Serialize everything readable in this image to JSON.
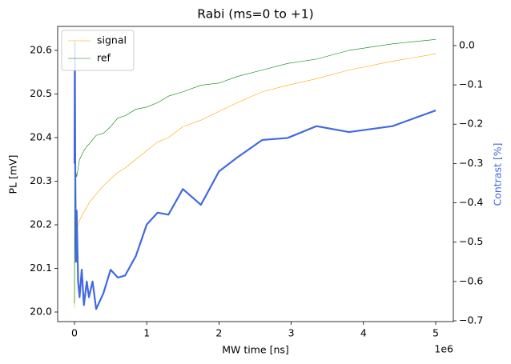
{
  "chart_data": {
    "type": "line",
    "title": "Rabi (ms=0 to +1)",
    "xlabel": "MW time [ns]",
    "x_offset_label": "1e6",
    "ylabel": "PL [mV]",
    "y2label": "Contrast [%]",
    "y2label_color": "#4169e1",
    "x": [
      0,
      5000,
      10000,
      20000,
      30000,
      50000,
      70000,
      100000,
      130000,
      170000,
      200000,
      250000,
      300000,
      400000,
      500000,
      600000,
      700000,
      850000,
      1000000,
      1150000,
      1300000,
      1500000,
      1750000,
      2000000,
      2250000,
      2600000,
      2950000,
      3350000,
      3800000,
      4400000,
      5000000
    ],
    "series": [
      {
        "name": "signal",
        "color": "#ffa500",
        "line_width": 0.6,
        "values": [
          20.01,
          20.3,
          20.15,
          20.2,
          20.19,
          20.2,
          20.21,
          20.22,
          20.23,
          20.24,
          20.25,
          20.26,
          20.27,
          20.29,
          20.305,
          20.32,
          20.33,
          20.35,
          20.37,
          20.39,
          20.4,
          20.425,
          20.44,
          20.46,
          20.48,
          20.505,
          20.52,
          20.535,
          20.555,
          20.575,
          20.592
        ]
      },
      {
        "name": "ref",
        "color": "#008000",
        "line_width": 0.6,
        "values": [
          20.02,
          20.55,
          20.3,
          20.32,
          20.31,
          20.33,
          20.35,
          20.36,
          20.37,
          20.38,
          20.385,
          20.395,
          20.405,
          20.41,
          20.425,
          20.445,
          20.45,
          20.465,
          20.47,
          20.48,
          20.495,
          20.505,
          20.52,
          20.525,
          20.54,
          20.555,
          20.57,
          20.58,
          20.6,
          20.615,
          20.625
        ]
      },
      {
        "axis": "y2",
        "color": "#4169e1",
        "line_width": 2.2,
        "values": [
          -0.3,
          0.01,
          -0.3,
          -0.55,
          -0.42,
          -0.6,
          -0.64,
          -0.57,
          -0.66,
          -0.6,
          -0.64,
          -0.6,
          -0.67,
          -0.63,
          -0.57,
          -0.59,
          -0.585,
          -0.535,
          -0.455,
          -0.425,
          -0.43,
          -0.365,
          -0.405,
          -0.32,
          -0.285,
          -0.24,
          -0.235,
          -0.205,
          -0.22,
          -0.205,
          -0.165
        ]
      }
    ],
    "xlim": [
      -233000,
      5244000
    ],
    "xticks": [
      {
        "value": 0,
        "label": "0"
      },
      {
        "value": 1000000,
        "label": "1"
      },
      {
        "value": 2000000,
        "label": "2"
      },
      {
        "value": 3000000,
        "label": "3"
      },
      {
        "value": 4000000,
        "label": "4"
      },
      {
        "value": 5000000,
        "label": "5"
      }
    ],
    "ylim": [
      19.978,
      20.655
    ],
    "yticks": [
      {
        "value": 20,
        "label": "20.0"
      },
      20.1,
      20.2,
      20.3,
      20.4,
      20.5,
      20.6
    ],
    "y2lim": [
      -0.702,
      0.0487
    ],
    "y2ticks": [
      {
        "value": 0,
        "label": "0.0"
      },
      {
        "value": -0.1,
        "label": "−0.1"
      },
      {
        "value": -0.2,
        "label": "−0.2"
      },
      {
        "value": -0.3,
        "label": "−0.3"
      },
      {
        "value": -0.4,
        "label": "−0.4"
      },
      {
        "value": -0.5,
        "label": "−0.5"
      },
      {
        "value": -0.6,
        "label": "−0.6"
      },
      {
        "value": -0.7,
        "label": "−0.7"
      }
    ],
    "legend": "upper left"
  }
}
